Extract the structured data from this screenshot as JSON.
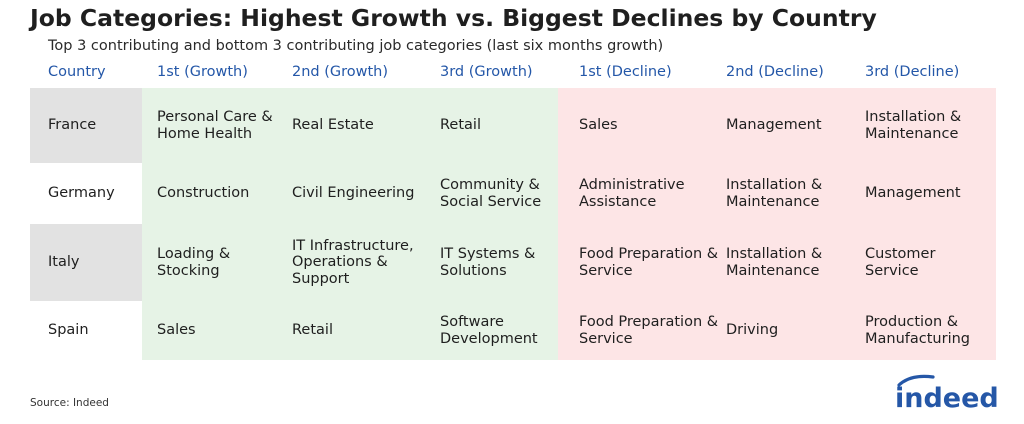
{
  "title": "Job Categories: Highest Growth vs. Biggest Declines by Country",
  "subtitle": "Top 3 contributing and bottom 3 contributing job categories (last six months growth)",
  "source": "Source: Indeed",
  "logo": {
    "text": "indeed"
  },
  "colors": {
    "header_text": "#2457a8",
    "growth_bg": "#e6f3e6",
    "decline_bg": "#fde5e6",
    "country_shade": "#e2e2e2",
    "logo_blue": "#2557a7"
  },
  "chart_data": {
    "type": "table",
    "title": "Job Categories: Highest Growth vs. Biggest Declines by Country",
    "subtitle": "Top 3 contributing and bottom 3 contributing job categories (last six months growth)",
    "columns": [
      "Country",
      "1st (Growth)",
      "2nd (Growth)",
      "3rd (Growth)",
      "1st (Decline)",
      "2nd (Decline)",
      "3rd (Decline)"
    ],
    "rows": [
      [
        "France",
        "Personal Care & Home Health",
        "Real Estate",
        "Retail",
        "Sales",
        "Management",
        "Installation & Maintenance"
      ],
      [
        "Germany",
        "Construction",
        "Civil Engineering",
        "Community & Social Service",
        "Administrative Assistance",
        "Installation & Maintenance",
        "Management"
      ],
      [
        "Italy",
        "Loading & Stocking",
        "IT Infrastructure, Operations & Support",
        "IT Systems & Solutions",
        "Food Preparation & Service",
        "Installation & Maintenance",
        "Customer Service"
      ],
      [
        "Spain",
        "Sales",
        "Retail",
        "Software Development",
        "Food Preparation & Service",
        "Driving",
        "Production & Manufacturing"
      ]
    ]
  }
}
